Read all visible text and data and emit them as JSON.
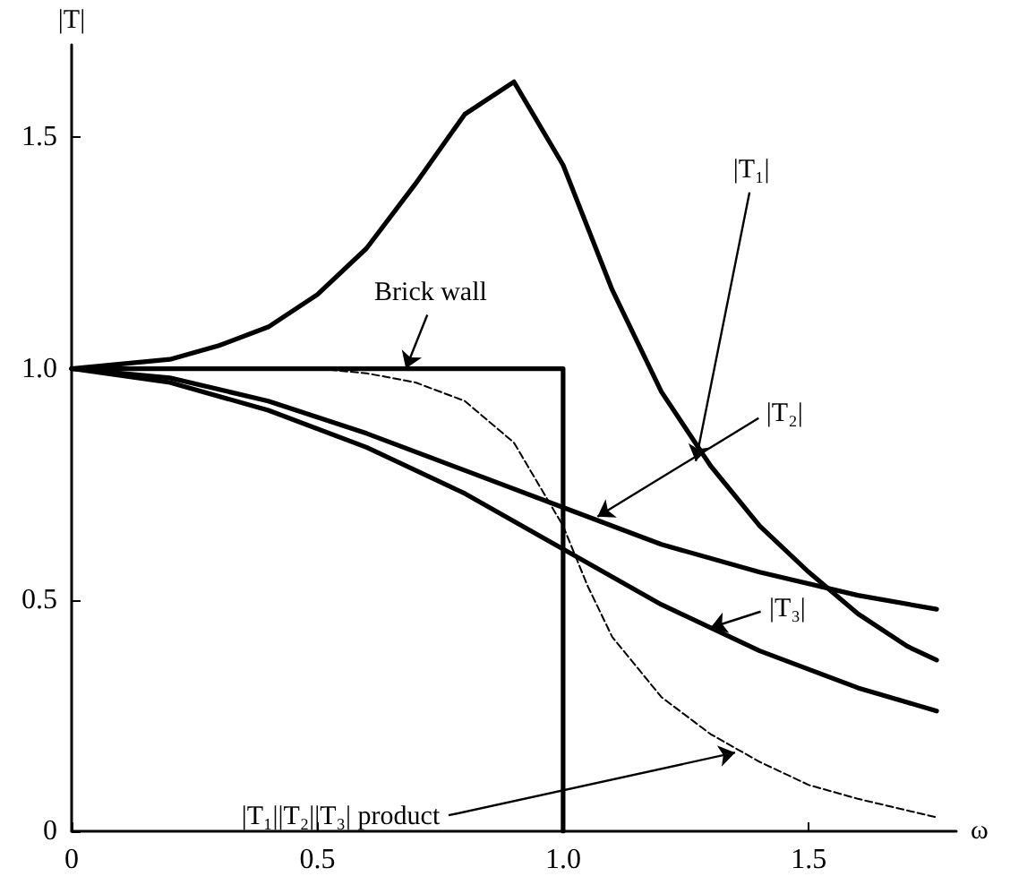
{
  "chart_data": {
    "type": "line",
    "xlabel": "ω",
    "ylabel": "|T|",
    "xlim": [
      0,
      1.8
    ],
    "ylim": [
      0,
      1.7
    ],
    "xticks": [
      0,
      0.5,
      {
        "value": 1,
        "label": "1.0"
      },
      1.5
    ],
    "yticks": [
      0,
      0.5,
      {
        "value": 1,
        "label": "1.0"
      },
      1.5
    ],
    "grid": false,
    "marker": "none",
    "series": [
      {
        "color": "#000000",
        "x": [
          0,
          0.1,
          0.2,
          0.3,
          0.4,
          0.5,
          0.6,
          0.7,
          0.8,
          0.9,
          1.0,
          1.1,
          1.2,
          1.3,
          1.4,
          1.5,
          1.6,
          1.7,
          1.76
        ],
        "values": [
          1,
          1.01,
          1.02,
          1.05,
          1.09,
          1.16,
          1.26,
          1.4,
          1.55,
          1.62,
          1.44,
          1.17,
          0.95,
          0.79,
          0.66,
          0.56,
          0.47,
          0.4,
          0.37
        ]
      },
      {
        "color": "#000000",
        "x": [
          0,
          0.2,
          0.4,
          0.6,
          0.8,
          1.0,
          1.2,
          1.4,
          1.6,
          1.76
        ],
        "values": [
          1,
          0.98,
          0.93,
          0.86,
          0.78,
          0.7,
          0.62,
          0.56,
          0.51,
          0.48
        ]
      },
      {
        "color": "#000000",
        "x": [
          0,
          0.2,
          0.4,
          0.6,
          0.8,
          1.0,
          1.2,
          1.4,
          1.6,
          1.76
        ],
        "values": [
          1,
          0.97,
          0.91,
          0.83,
          0.73,
          0.61,
          0.49,
          0.39,
          0.31,
          0.26
        ]
      },
      {
        "color": "#000000",
        "type": "step",
        "x": [
          0,
          1,
          1
        ],
        "values": [
          1,
          1,
          0
        ]
      },
      {
        "color": "#000000",
        "line_style": "dashed",
        "x": [
          0,
          0.5,
          0.6,
          0.7,
          0.8,
          0.9,
          1.0,
          1.05,
          1.1,
          1.2,
          1.3,
          1.4,
          1.5,
          1.6,
          1.76
        ],
        "values": [
          1,
          1,
          0.99,
          0.97,
          0.93,
          0.84,
          0.66,
          0.53,
          0.42,
          0.29,
          0.21,
          0.15,
          0.1,
          0.07,
          0.03
        ]
      }
    ],
    "annotations": [
      {
        "text": "|T₁|",
        "x": 1.27,
        "y": 0.8
      },
      {
        "text": "Brick wall",
        "x": 0.68,
        "y": 1.0
      },
      {
        "text": "|T₂|",
        "x": 1.07,
        "y": 0.68
      },
      {
        "text": "|T₃|",
        "x": 1.3,
        "y": 0.44
      },
      {
        "text": "|T₁||T₂||T₃| product",
        "x": 1.35,
        "y": 0.17
      }
    ]
  }
}
